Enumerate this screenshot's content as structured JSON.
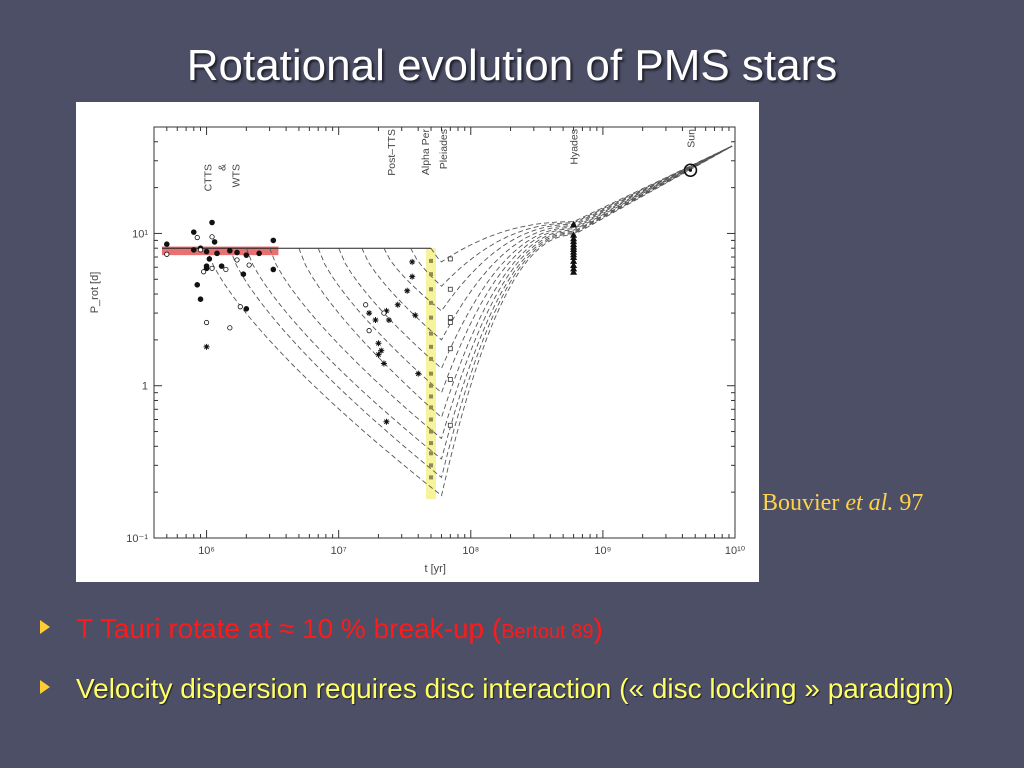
{
  "slide": {
    "title": "Rotational evolution of PMS stars",
    "citation_author": "Bouvier",
    "citation_etal": "et al.",
    "citation_year": "97"
  },
  "bullets": [
    {
      "text_a": "T Tauri  rotate at ≈ 10 % break-up (",
      "ref": "Bertout 89",
      "text_b": ")"
    },
    {
      "text": "Velocity dispersion requires disc interaction (« disc locking » paradigm)"
    }
  ],
  "chart_data": {
    "type": "line",
    "title": "",
    "xlabel": "t [yr]",
    "ylabel": "P_rot [d]",
    "xscale": "log",
    "yscale": "log",
    "xlim": [
      400000,
      10000000000
    ],
    "ylim": [
      0.1,
      50
    ],
    "x_ticks": [
      "10⁶",
      "10⁷",
      "10⁸",
      "10⁹",
      "10¹⁰"
    ],
    "y_ticks": [
      "10¹",
      "1",
      "10⁻¹"
    ],
    "annotations": [
      "CTTS & WTS",
      "Post–TTS",
      "Alpha Per",
      "Pleiades",
      "Hyades",
      "Sun"
    ],
    "colors": {
      "highlight_band": "#e87070",
      "cluster_band": "#f7f39a",
      "curves": "#555555"
    },
    "highlight_band_period_range": [
      7.2,
      8.2
    ],
    "cluster_band_age": 50000000,
    "disc_locking_period": 8,
    "sun": {
      "age": 4600000000,
      "period": 26
    },
    "hyades_age": 600000000,
    "tracks": [
      {
        "decouple_age": 1000000,
        "min_period": 0.19,
        "cluster_period": 0.19
      },
      {
        "decouple_age": 1500000,
        "min_period": 0.25,
        "cluster_period": 0.27
      },
      {
        "decouple_age": 2000000,
        "min_period": 0.33,
        "cluster_period": 0.36
      },
      {
        "decouple_age": 3000000,
        "min_period": 0.45,
        "cluster_period": 0.48
      },
      {
        "decouple_age": 5000000,
        "min_period": 0.62,
        "cluster_period": 0.62
      },
      {
        "decouple_age": 7000000,
        "min_period": 0.9,
        "cluster_period": 0.9
      },
      {
        "decouple_age": 10000000,
        "min_period": 1.3,
        "cluster_period": 1.3
      },
      {
        "decouple_age": 15000000,
        "min_period": 2.0,
        "cluster_period": 2.0
      },
      {
        "decouple_age": 22000000,
        "min_period": 3.1,
        "cluster_period": 3.1
      },
      {
        "decouple_age": 35000000,
        "min_period": 4.5,
        "cluster_period": 4.5
      },
      {
        "decouple_age": 50000000,
        "min_period": 6.5,
        "cluster_period": 6.5
      }
    ],
    "ctts_filled": [
      [
        500000,
        8.5
      ],
      [
        800000,
        10.2
      ],
      [
        900000,
        8
      ],
      [
        1000000,
        7.6
      ],
      [
        1050000,
        6.8
      ],
      [
        1100000,
        11.8
      ],
      [
        1150000,
        8.8
      ],
      [
        1200000,
        7.4
      ],
      [
        1000000,
        6.1
      ],
      [
        1000000,
        5.9
      ],
      [
        850000,
        4.6
      ],
      [
        900000,
        3.7
      ],
      [
        1700000,
        7.5
      ],
      [
        1900000,
        5.4
      ],
      [
        2000000,
        7.2
      ],
      [
        2000000,
        3.2
      ],
      [
        2500000,
        7.4
      ],
      [
        3200000,
        9
      ],
      [
        3200000,
        5.8
      ],
      [
        1500000,
        7.7
      ],
      [
        800000,
        7.8
      ],
      [
        1300000,
        6.1
      ]
    ],
    "ctts_open": [
      [
        500000,
        7.3
      ],
      [
        850000,
        9.4
      ],
      [
        900000,
        7.8
      ],
      [
        950000,
        5.6
      ],
      [
        1000000,
        2.6
      ],
      [
        1100000,
        5.9
      ],
      [
        1400000,
        5.8
      ],
      [
        1500000,
        2.4
      ],
      [
        1700000,
        6.7
      ],
      [
        1800000,
        3.3
      ],
      [
        2100000,
        6.2
      ],
      [
        1100000,
        9.5
      ]
    ],
    "ctts_star": [
      [
        1000000,
        1.8
      ]
    ],
    "post_ttts_star": [
      [
        17000000,
        3.0
      ],
      [
        19000000,
        2.7
      ],
      [
        20000000,
        1.9
      ],
      [
        20000000,
        1.6
      ],
      [
        21000000,
        1.7
      ],
      [
        22000000,
        1.4
      ],
      [
        23000000,
        3.1
      ],
      [
        24000000,
        2.7
      ],
      [
        28000000,
        3.4
      ],
      [
        33000000,
        4.2
      ],
      [
        36000000,
        6.5
      ],
      [
        38000000,
        2.9
      ],
      [
        40000000,
        1.2
      ],
      [
        23000000,
        0.58
      ],
      [
        36000000,
        5.2
      ]
    ],
    "post_ttts_open": [
      [
        16000000,
        3.4
      ],
      [
        17000000,
        2.3
      ],
      [
        22000000,
        3.0
      ]
    ],
    "pleiades_open": [
      [
        70000000,
        6.8
      ],
      [
        70000000,
        4.3
      ],
      [
        70000000,
        2.8
      ],
      [
        70000000,
        2.6
      ],
      [
        70000000,
        1.75
      ],
      [
        70000000,
        1.1
      ],
      [
        70000000,
        0.55
      ]
    ],
    "alpha_per_squares": [
      [
        50000000,
        6.6
      ],
      [
        50000000,
        5.4
      ],
      [
        50000000,
        4.3
      ],
      [
        50000000,
        3.5
      ],
      [
        50000000,
        2.8
      ],
      [
        50000000,
        2.2
      ],
      [
        50000000,
        1.8
      ],
      [
        50000000,
        1.5
      ],
      [
        50000000,
        1.2
      ],
      [
        50000000,
        1.0
      ],
      [
        50000000,
        0.85
      ],
      [
        50000000,
        0.72
      ],
      [
        50000000,
        0.6
      ],
      [
        50000000,
        0.5
      ],
      [
        50000000,
        0.42
      ],
      [
        50000000,
        0.36
      ],
      [
        50000000,
        0.3
      ],
      [
        50000000,
        0.25
      ]
    ],
    "hyades_triangles": [
      [
        600000000,
        11.5
      ],
      [
        600000000,
        9.8
      ],
      [
        600000000,
        9.3
      ],
      [
        600000000,
        8.9
      ],
      [
        600000000,
        8.5
      ],
      [
        600000000,
        8.2
      ],
      [
        600000000,
        7.9
      ],
      [
        600000000,
        7.6
      ],
      [
        600000000,
        7.3
      ],
      [
        600000000,
        7.0
      ],
      [
        600000000,
        6.6
      ],
      [
        600000000,
        6.2
      ],
      [
        600000000,
        5.9
      ],
      [
        600000000,
        5.6
      ]
    ]
  }
}
